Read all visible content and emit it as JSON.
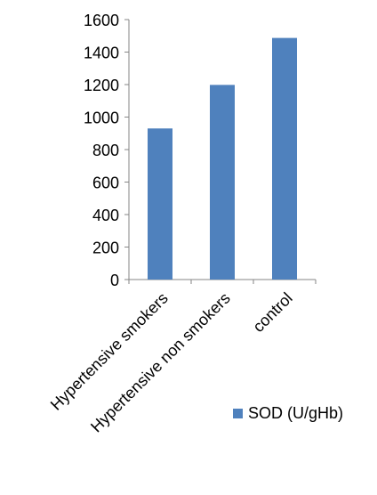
{
  "chart_data": {
    "type": "bar",
    "categories": [
      "Hypertensive smokers",
      "Hypertensive non smokers",
      "control"
    ],
    "series": [
      {
        "name": "SOD (U/gHb)",
        "values": [
          930,
          1198,
          1487
        ]
      }
    ],
    "ylim": [
      0,
      1600
    ],
    "yticks": [
      0,
      200,
      400,
      600,
      800,
      1000,
      1200,
      1400,
      1600
    ],
    "grid": false,
    "legend_position": "bottom-right",
    "colors": {
      "bar": "#4F81BD",
      "axis": "#868686"
    }
  }
}
